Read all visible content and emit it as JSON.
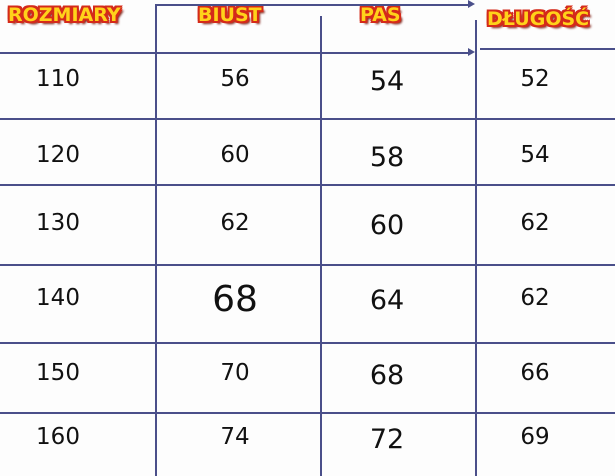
{
  "headers": [
    "ROZMIARY",
    "BIUST",
    "PAS",
    "DŁUGOŚĆ"
  ],
  "rows": [
    [
      "110",
      "56",
      "54",
      "52"
    ],
    [
      "120",
      "60",
      "58",
      "54"
    ],
    [
      "130",
      "62",
      "60",
      "62"
    ],
    [
      "140",
      "68",
      "64",
      "62"
    ],
    [
      "150",
      "70",
      "68",
      "66"
    ],
    [
      "160",
      "74",
      "72",
      "69"
    ]
  ],
  "colors": {
    "header_fill": "#ffd21a",
    "header_outline": "#d42a1a",
    "lines": "#4a4f8a"
  }
}
